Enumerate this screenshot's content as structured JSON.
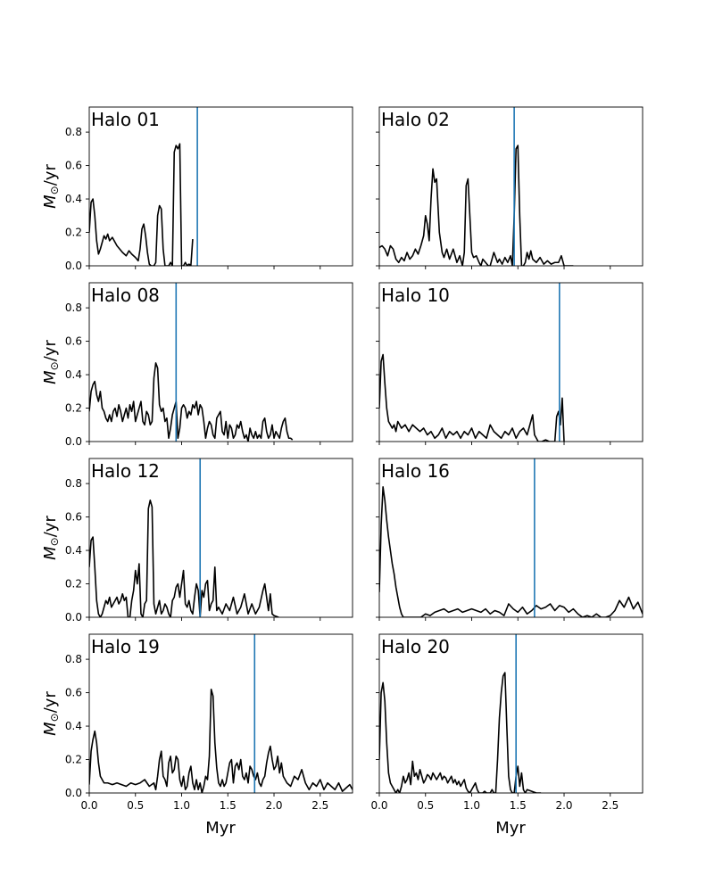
{
  "figure": {
    "xlabel": "Myr",
    "ylabel_main": "M",
    "ylabel_sub": "⊙",
    "ylabel_tail": "/yr"
  },
  "axes": {
    "xlim": [
      0.0,
      2.85
    ],
    "ylim": [
      0.0,
      0.95
    ],
    "xticks": [
      0.0,
      0.5,
      1.0,
      1.5,
      2.0,
      2.5
    ],
    "xtick_labels": [
      "0.0",
      "0.5",
      "1.0",
      "1.5",
      "2.0",
      "2.5"
    ],
    "yticks": [
      0.0,
      0.2,
      0.4,
      0.6,
      0.8
    ],
    "ytick_labels": [
      "0.0",
      "0.2",
      "0.4",
      "0.6",
      "0.8"
    ],
    "line_color": "#000000",
    "marker_color": "#1f77b4"
  },
  "chart_data": [
    {
      "type": "line",
      "title": "Halo 01",
      "vline": 1.17,
      "x": [
        0,
        0.02,
        0.04,
        0.06,
        0.08,
        0.1,
        0.12,
        0.14,
        0.16,
        0.18,
        0.2,
        0.22,
        0.25,
        0.28,
        0.3,
        0.33,
        0.36,
        0.4,
        0.43,
        0.46,
        0.5,
        0.53,
        0.55,
        0.57,
        0.59,
        0.61,
        0.63,
        0.65,
        0.67,
        0.7,
        0.72,
        0.74,
        0.76,
        0.78,
        0.8,
        0.82,
        0.84,
        0.86,
        0.88,
        0.9,
        0.92,
        0.94,
        0.96,
        0.98,
        1.0,
        1.02,
        1.04,
        1.06,
        1.08,
        1.1,
        1.12
      ],
      "y": [
        0.2,
        0.38,
        0.4,
        0.3,
        0.15,
        0.07,
        0.1,
        0.14,
        0.18,
        0.16,
        0.19,
        0.15,
        0.17,
        0.14,
        0.12,
        0.1,
        0.08,
        0.06,
        0.09,
        0.07,
        0.05,
        0.03,
        0.1,
        0.22,
        0.25,
        0.18,
        0.08,
        0.01,
        0.0,
        0.0,
        0.02,
        0.3,
        0.36,
        0.34,
        0.1,
        0.0,
        0.0,
        0.0,
        0.02,
        0.0,
        0.68,
        0.72,
        0.7,
        0.73,
        0.0,
        0.0,
        0.02,
        0.0,
        0.01,
        0.0,
        0.16
      ]
    },
    {
      "type": "line",
      "title": "Halo 02",
      "vline": 1.46,
      "x": [
        0,
        0.03,
        0.06,
        0.09,
        0.12,
        0.15,
        0.18,
        0.21,
        0.24,
        0.27,
        0.3,
        0.33,
        0.36,
        0.39,
        0.42,
        0.45,
        0.48,
        0.5,
        0.52,
        0.54,
        0.56,
        0.58,
        0.6,
        0.62,
        0.65,
        0.68,
        0.7,
        0.73,
        0.76,
        0.8,
        0.84,
        0.87,
        0.9,
        0.92,
        0.94,
        0.96,
        0.98,
        1.0,
        1.02,
        1.05,
        1.08,
        1.1,
        1.12,
        1.15,
        1.18,
        1.2,
        1.24,
        1.28,
        1.3,
        1.33,
        1.36,
        1.39,
        1.42,
        1.44,
        1.46,
        1.48,
        1.5,
        1.52,
        1.54,
        1.56,
        1.58,
        1.6,
        1.62,
        1.64,
        1.66,
        1.68,
        1.7,
        1.74,
        1.78,
        1.82,
        1.86,
        1.9,
        1.94,
        1.97,
        2.0,
        2.1
      ],
      "y": [
        0.11,
        0.12,
        0.1,
        0.06,
        0.12,
        0.1,
        0.04,
        0.02,
        0.05,
        0.03,
        0.08,
        0.04,
        0.06,
        0.1,
        0.07,
        0.12,
        0.18,
        0.3,
        0.25,
        0.15,
        0.4,
        0.58,
        0.5,
        0.52,
        0.2,
        0.08,
        0.05,
        0.1,
        0.04,
        0.1,
        0.02,
        0.06,
        0.0,
        0.08,
        0.48,
        0.52,
        0.3,
        0.08,
        0.05,
        0.06,
        0.02,
        0.0,
        0.04,
        0.02,
        0.0,
        0.0,
        0.08,
        0.02,
        0.04,
        0.01,
        0.05,
        0.02,
        0.06,
        0.0,
        0.3,
        0.7,
        0.72,
        0.3,
        0.0,
        0.0,
        0.02,
        0.08,
        0.04,
        0.09,
        0.04,
        0.03,
        0.02,
        0.05,
        0.01,
        0.03,
        0.01,
        0.02,
        0.02,
        0.06,
        0.0,
        0.0
      ]
    },
    {
      "type": "line",
      "title": "Halo 08",
      "vline": 0.94,
      "x": [
        0,
        0.02,
        0.04,
        0.06,
        0.08,
        0.1,
        0.12,
        0.14,
        0.16,
        0.18,
        0.2,
        0.22,
        0.24,
        0.26,
        0.28,
        0.3,
        0.32,
        0.34,
        0.36,
        0.38,
        0.4,
        0.42,
        0.44,
        0.46,
        0.48,
        0.5,
        0.52,
        0.54,
        0.56,
        0.58,
        0.6,
        0.62,
        0.64,
        0.66,
        0.68,
        0.7,
        0.72,
        0.74,
        0.76,
        0.78,
        0.8,
        0.82,
        0.84,
        0.86,
        0.88,
        0.9,
        0.92,
        0.94,
        0.96,
        0.98,
        1.0,
        1.02,
        1.04,
        1.06,
        1.08,
        1.1,
        1.12,
        1.14,
        1.16,
        1.18,
        1.2,
        1.22,
        1.24,
        1.26,
        1.28,
        1.3,
        1.32,
        1.34,
        1.36,
        1.38,
        1.4,
        1.42,
        1.44,
        1.46,
        1.48,
        1.5,
        1.52,
        1.54,
        1.56,
        1.58,
        1.6,
        1.62,
        1.64,
        1.66,
        1.68,
        1.7,
        1.72,
        1.74,
        1.76,
        1.78,
        1.8,
        1.82,
        1.84,
        1.86,
        1.88,
        1.9,
        1.92,
        1.94,
        1.96,
        1.98,
        2.0,
        2.02,
        2.04,
        2.06,
        2.08,
        2.1,
        2.12,
        2.14,
        2.16,
        2.18,
        2.2
      ],
      "y": [
        0.18,
        0.3,
        0.34,
        0.36,
        0.28,
        0.24,
        0.3,
        0.2,
        0.18,
        0.14,
        0.12,
        0.16,
        0.12,
        0.18,
        0.2,
        0.15,
        0.22,
        0.18,
        0.12,
        0.16,
        0.2,
        0.14,
        0.22,
        0.18,
        0.24,
        0.12,
        0.16,
        0.2,
        0.24,
        0.12,
        0.1,
        0.18,
        0.16,
        0.1,
        0.12,
        0.38,
        0.47,
        0.44,
        0.22,
        0.18,
        0.2,
        0.12,
        0.14,
        0.02,
        0.08,
        0.16,
        0.2,
        0.24,
        0.02,
        0.08,
        0.2,
        0.22,
        0.2,
        0.14,
        0.18,
        0.16,
        0.22,
        0.2,
        0.24,
        0.16,
        0.22,
        0.2,
        0.12,
        0.02,
        0.08,
        0.12,
        0.1,
        0.04,
        0.02,
        0.14,
        0.16,
        0.18,
        0.06,
        0.04,
        0.12,
        0.02,
        0.1,
        0.08,
        0.02,
        0.04,
        0.1,
        0.08,
        0.12,
        0.06,
        0.02,
        0.04,
        0.0,
        0.08,
        0.04,
        0.02,
        0.06,
        0.02,
        0.04,
        0.02,
        0.12,
        0.14,
        0.06,
        0.02,
        0.04,
        0.1,
        0.02,
        0.06,
        0.04,
        0.02,
        0.08,
        0.12,
        0.14,
        0.06,
        0.02,
        0.02,
        0.01
      ]
    },
    {
      "type": "line",
      "title": "Halo 10",
      "vline": 1.95,
      "x": [
        0,
        0.02,
        0.04,
        0.06,
        0.08,
        0.1,
        0.12,
        0.14,
        0.16,
        0.18,
        0.2,
        0.24,
        0.28,
        0.32,
        0.36,
        0.4,
        0.44,
        0.48,
        0.52,
        0.56,
        0.6,
        0.64,
        0.68,
        0.72,
        0.76,
        0.8,
        0.84,
        0.88,
        0.92,
        0.96,
        1.0,
        1.04,
        1.08,
        1.12,
        1.16,
        1.2,
        1.24,
        1.28,
        1.32,
        1.36,
        1.4,
        1.44,
        1.48,
        1.52,
        1.56,
        1.6,
        1.64,
        1.66,
        1.68,
        1.7,
        1.72,
        1.76,
        1.8,
        1.84,
        1.88,
        1.9,
        1.92,
        1.94,
        1.96,
        1.98,
        2.0
      ],
      "y": [
        0.2,
        0.48,
        0.52,
        0.35,
        0.2,
        0.12,
        0.1,
        0.08,
        0.1,
        0.06,
        0.12,
        0.08,
        0.1,
        0.06,
        0.1,
        0.08,
        0.06,
        0.08,
        0.04,
        0.06,
        0.02,
        0.04,
        0.08,
        0.02,
        0.06,
        0.04,
        0.06,
        0.02,
        0.06,
        0.04,
        0.08,
        0.02,
        0.06,
        0.04,
        0.02,
        0.1,
        0.06,
        0.04,
        0.02,
        0.06,
        0.04,
        0.08,
        0.02,
        0.06,
        0.08,
        0.04,
        0.12,
        0.16,
        0.04,
        0.02,
        0.0,
        0.0,
        0.01,
        0.0,
        0.0,
        0.0,
        0.15,
        0.18,
        0.1,
        0.26,
        0.0
      ]
    },
    {
      "type": "line",
      "title": "Halo 12",
      "vline": 1.2,
      "x": [
        0,
        0.02,
        0.04,
        0.06,
        0.08,
        0.1,
        0.12,
        0.14,
        0.16,
        0.18,
        0.2,
        0.22,
        0.24,
        0.26,
        0.28,
        0.3,
        0.32,
        0.34,
        0.36,
        0.38,
        0.4,
        0.42,
        0.44,
        0.46,
        0.48,
        0.5,
        0.52,
        0.54,
        0.56,
        0.58,
        0.6,
        0.62,
        0.64,
        0.66,
        0.68,
        0.7,
        0.72,
        0.74,
        0.76,
        0.78,
        0.8,
        0.82,
        0.84,
        0.86,
        0.88,
        0.9,
        0.92,
        0.94,
        0.96,
        0.98,
        1.0,
        1.02,
        1.04,
        1.06,
        1.08,
        1.1,
        1.12,
        1.14,
        1.16,
        1.18,
        1.2,
        1.22,
        1.24,
        1.26,
        1.28,
        1.3,
        1.32,
        1.34,
        1.36,
        1.38,
        1.4,
        1.44,
        1.48,
        1.52,
        1.56,
        1.6,
        1.64,
        1.68,
        1.72,
        1.76,
        1.8,
        1.84,
        1.88,
        1.9,
        1.92,
        1.94,
        1.96,
        1.98,
        2.0,
        2.05
      ],
      "y": [
        0.3,
        0.46,
        0.48,
        0.3,
        0.1,
        0.02,
        0.0,
        0.02,
        0.06,
        0.1,
        0.08,
        0.12,
        0.06,
        0.08,
        0.1,
        0.12,
        0.08,
        0.1,
        0.14,
        0.1,
        0.12,
        0.0,
        0.0,
        0.1,
        0.16,
        0.28,
        0.2,
        0.32,
        0.02,
        0.0,
        0.08,
        0.1,
        0.65,
        0.7,
        0.66,
        0.08,
        0.02,
        0.06,
        0.1,
        0.02,
        0.04,
        0.08,
        0.06,
        0.02,
        0.0,
        0.1,
        0.12,
        0.18,
        0.2,
        0.12,
        0.2,
        0.28,
        0.08,
        0.06,
        0.1,
        0.04,
        0.02,
        0.12,
        0.2,
        0.16,
        0.0,
        0.16,
        0.12,
        0.2,
        0.22,
        0.04,
        0.08,
        0.1,
        0.3,
        0.04,
        0.06,
        0.02,
        0.08,
        0.04,
        0.12,
        0.02,
        0.06,
        0.14,
        0.02,
        0.08,
        0.02,
        0.06,
        0.16,
        0.2,
        0.12,
        0.04,
        0.14,
        0.02,
        0.01,
        0.0
      ]
    },
    {
      "type": "line",
      "title": "Halo 16",
      "vline": 1.68,
      "x": [
        0,
        0.02,
        0.04,
        0.06,
        0.08,
        0.1,
        0.12,
        0.14,
        0.16,
        0.18,
        0.2,
        0.22,
        0.24,
        0.26,
        0.3,
        0.35,
        0.4,
        0.45,
        0.5,
        0.55,
        0.6,
        0.65,
        0.7,
        0.75,
        0.8,
        0.85,
        0.9,
        0.95,
        1.0,
        1.05,
        1.1,
        1.15,
        1.2,
        1.25,
        1.3,
        1.35,
        1.4,
        1.45,
        1.5,
        1.55,
        1.6,
        1.65,
        1.7,
        1.75,
        1.8,
        1.85,
        1.9,
        1.95,
        2.0,
        2.05,
        2.1,
        2.15,
        2.2,
        2.25,
        2.3,
        2.35,
        2.4,
        2.45,
        2.5,
        2.55,
        2.6,
        2.65,
        2.7,
        2.75,
        2.8,
        2.85
      ],
      "y": [
        0.15,
        0.55,
        0.78,
        0.7,
        0.58,
        0.48,
        0.4,
        0.32,
        0.26,
        0.18,
        0.12,
        0.06,
        0.02,
        0.0,
        0.0,
        0.0,
        0.0,
        0.0,
        0.02,
        0.01,
        0.03,
        0.04,
        0.05,
        0.03,
        0.04,
        0.05,
        0.03,
        0.04,
        0.05,
        0.04,
        0.03,
        0.05,
        0.02,
        0.04,
        0.03,
        0.01,
        0.08,
        0.05,
        0.03,
        0.06,
        0.02,
        0.04,
        0.07,
        0.05,
        0.06,
        0.08,
        0.04,
        0.07,
        0.06,
        0.03,
        0.05,
        0.02,
        0.0,
        0.01,
        0.0,
        0.02,
        0.0,
        0.0,
        0.01,
        0.04,
        0.1,
        0.06,
        0.12,
        0.05,
        0.09,
        0.02
      ]
    },
    {
      "type": "line",
      "title": "Halo 19",
      "vline": 1.79,
      "x": [
        0,
        0.02,
        0.04,
        0.06,
        0.08,
        0.1,
        0.12,
        0.14,
        0.16,
        0.2,
        0.25,
        0.3,
        0.35,
        0.4,
        0.45,
        0.5,
        0.55,
        0.6,
        0.65,
        0.7,
        0.72,
        0.74,
        0.76,
        0.78,
        0.8,
        0.82,
        0.84,
        0.86,
        0.88,
        0.9,
        0.92,
        0.94,
        0.96,
        0.98,
        1.0,
        1.02,
        1.04,
        1.06,
        1.08,
        1.1,
        1.12,
        1.14,
        1.16,
        1.18,
        1.2,
        1.22,
        1.24,
        1.26,
        1.28,
        1.3,
        1.32,
        1.34,
        1.36,
        1.38,
        1.4,
        1.42,
        1.44,
        1.46,
        1.48,
        1.5,
        1.52,
        1.54,
        1.56,
        1.58,
        1.6,
        1.62,
        1.64,
        1.66,
        1.68,
        1.7,
        1.72,
        1.74,
        1.76,
        1.78,
        1.8,
        1.82,
        1.84,
        1.86,
        1.88,
        1.9,
        1.92,
        1.94,
        1.96,
        1.98,
        2.0,
        2.02,
        2.04,
        2.06,
        2.08,
        2.1,
        2.14,
        2.18,
        2.22,
        2.26,
        2.3,
        2.34,
        2.38,
        2.42,
        2.46,
        2.5,
        2.54,
        2.58,
        2.62,
        2.66,
        2.7,
        2.74,
        2.78,
        2.82,
        2.85
      ],
      "y": [
        0.05,
        0.25,
        0.32,
        0.37,
        0.3,
        0.18,
        0.1,
        0.08,
        0.06,
        0.06,
        0.05,
        0.06,
        0.05,
        0.04,
        0.06,
        0.05,
        0.06,
        0.08,
        0.04,
        0.06,
        0.02,
        0.1,
        0.2,
        0.25,
        0.1,
        0.08,
        0.04,
        0.18,
        0.22,
        0.12,
        0.14,
        0.22,
        0.2,
        0.08,
        0.04,
        0.1,
        0.02,
        0.04,
        0.12,
        0.16,
        0.06,
        0.02,
        0.08,
        0.02,
        0.06,
        0.0,
        0.04,
        0.1,
        0.08,
        0.22,
        0.62,
        0.58,
        0.3,
        0.15,
        0.06,
        0.04,
        0.08,
        0.04,
        0.06,
        0.12,
        0.18,
        0.2,
        0.06,
        0.16,
        0.18,
        0.14,
        0.2,
        0.1,
        0.08,
        0.12,
        0.06,
        0.16,
        0.14,
        0.1,
        0.08,
        0.12,
        0.06,
        0.04,
        0.08,
        0.1,
        0.18,
        0.24,
        0.28,
        0.2,
        0.14,
        0.16,
        0.22,
        0.12,
        0.18,
        0.1,
        0.06,
        0.04,
        0.1,
        0.08,
        0.14,
        0.06,
        0.02,
        0.06,
        0.04,
        0.08,
        0.02,
        0.06,
        0.04,
        0.02,
        0.06,
        0.01,
        0.03,
        0.05,
        0.02
      ]
    },
    {
      "type": "line",
      "title": "Halo 20",
      "vline": 1.48,
      "x": [
        0,
        0.02,
        0.04,
        0.06,
        0.08,
        0.1,
        0.12,
        0.14,
        0.16,
        0.18,
        0.2,
        0.22,
        0.24,
        0.26,
        0.28,
        0.3,
        0.32,
        0.34,
        0.36,
        0.38,
        0.4,
        0.42,
        0.44,
        0.46,
        0.48,
        0.5,
        0.52,
        0.54,
        0.56,
        0.58,
        0.6,
        0.62,
        0.64,
        0.66,
        0.68,
        0.7,
        0.72,
        0.74,
        0.76,
        0.78,
        0.8,
        0.82,
        0.84,
        0.86,
        0.88,
        0.9,
        0.92,
        0.94,
        0.96,
        0.98,
        1.0,
        1.02,
        1.04,
        1.06,
        1.08,
        1.1,
        1.12,
        1.14,
        1.16,
        1.18,
        1.2,
        1.22,
        1.24,
        1.26,
        1.28,
        1.3,
        1.32,
        1.34,
        1.36,
        1.38,
        1.4,
        1.42,
        1.44,
        1.46,
        1.48,
        1.5,
        1.52,
        1.54,
        1.56,
        1.58,
        1.6,
        1.65,
        1.7,
        1.75
      ],
      "y": [
        0.2,
        0.6,
        0.66,
        0.55,
        0.3,
        0.12,
        0.06,
        0.04,
        0.02,
        0.0,
        0.02,
        0.0,
        0.04,
        0.1,
        0.06,
        0.08,
        0.12,
        0.05,
        0.19,
        0.1,
        0.12,
        0.08,
        0.14,
        0.1,
        0.06,
        0.08,
        0.11,
        0.1,
        0.08,
        0.12,
        0.1,
        0.08,
        0.1,
        0.12,
        0.08,
        0.1,
        0.09,
        0.06,
        0.08,
        0.1,
        0.06,
        0.08,
        0.05,
        0.07,
        0.04,
        0.06,
        0.08,
        0.03,
        0.01,
        0.0,
        0.02,
        0.04,
        0.06,
        0.02,
        0.0,
        0.0,
        0.0,
        0.01,
        0.0,
        0.0,
        0.0,
        0.02,
        0.0,
        0.0,
        0.2,
        0.45,
        0.6,
        0.7,
        0.72,
        0.4,
        0.1,
        0.02,
        0.0,
        0.0,
        0.1,
        0.16,
        0.04,
        0.12,
        0.02,
        0.0,
        0.02,
        0.01,
        0.0,
        0.0
      ]
    }
  ]
}
